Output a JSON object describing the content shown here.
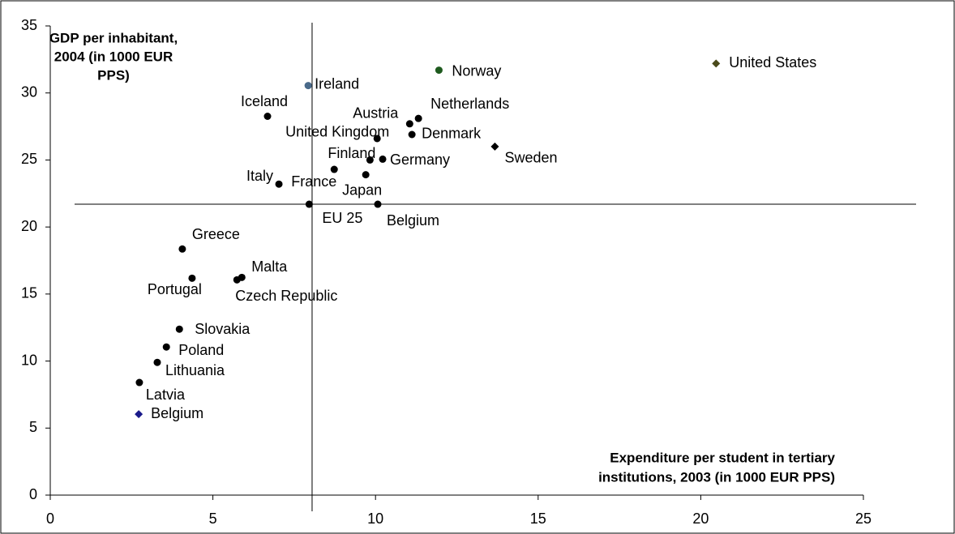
{
  "chart_data": {
    "type": "scatter",
    "y_label": [
      "GDP per inhabitant,",
      "2004 (in 1000 EUR",
      "PPS)"
    ],
    "x_label": [
      "Expenditure per student in tertiary",
      "institutions, 2003 (in 1000 EUR PPS)"
    ],
    "xlim": [
      0,
      25
    ],
    "xticks": [
      0,
      5,
      10,
      15,
      20,
      25
    ],
    "ylim": [
      0,
      35
    ],
    "yticks": [
      0,
      5,
      10,
      15,
      20,
      25,
      30,
      35
    ],
    "reference_lines": {
      "x": 8.05,
      "y": 21.7
    },
    "points": [
      {
        "name": "United States",
        "x": 20.47,
        "y": 32.2,
        "marker": "diamond",
        "color": "#4a4a1a"
      },
      {
        "name": "Norway",
        "x": 11.95,
        "y": 31.7,
        "marker": "circle",
        "color": "#1e5a1e"
      },
      {
        "name": "Ireland",
        "x": 7.93,
        "y": 30.55,
        "marker": "circle",
        "color": "#4a6a8a"
      },
      {
        "name": "Iceland",
        "x": 6.68,
        "y": 28.26,
        "marker": "circle",
        "color": "#000000"
      },
      {
        "name": "Austria",
        "x": 11.05,
        "y": 27.7,
        "marker": "circle",
        "color": "#000000"
      },
      {
        "name": "Netherlands",
        "x": 11.32,
        "y": 28.1,
        "marker": "circle",
        "color": "#000000"
      },
      {
        "name": "Denmark",
        "x": 11.12,
        "y": 26.9,
        "marker": "circle",
        "color": "#000000"
      },
      {
        "name": "United Kingdom",
        "x": 10.05,
        "y": 26.6,
        "marker": "circle",
        "color": "#000000"
      },
      {
        "name": "Sweden",
        "x": 13.67,
        "y": 26.0,
        "marker": "diamond",
        "color": "#000000"
      },
      {
        "name": "Finland",
        "x": 9.83,
        "y": 25.0,
        "marker": "circle",
        "color": "#000000"
      },
      {
        "name": "Germany",
        "x": 10.22,
        "y": 25.06,
        "marker": "circle",
        "color": "#000000"
      },
      {
        "name": "France",
        "x": 8.73,
        "y": 24.3,
        "marker": "circle",
        "color": "#000000"
      },
      {
        "name": "Japan",
        "x": 9.7,
        "y": 23.9,
        "marker": "circle",
        "color": "#000000"
      },
      {
        "name": "Italy",
        "x": 7.03,
        "y": 23.2,
        "marker": "circle",
        "color": "#000000"
      },
      {
        "name": "EU 25",
        "x": 7.96,
        "y": 21.7,
        "marker": "circle",
        "color": "#000000"
      },
      {
        "name": "Belgium",
        "x": 10.07,
        "y": 21.7,
        "marker": "circle",
        "color": "#000000"
      },
      {
        "name": "Greece",
        "x": 4.06,
        "y": 18.36,
        "marker": "circle",
        "color": "#000000"
      },
      {
        "name": "Malta",
        "x": 5.89,
        "y": 16.24,
        "marker": "circle",
        "color": "#000000"
      },
      {
        "name": "Czech Republic",
        "x": 5.74,
        "y": 16.06,
        "marker": "circle",
        "color": "#000000"
      },
      {
        "name": "Portugal",
        "x": 4.36,
        "y": 16.18,
        "marker": "circle",
        "color": "#000000"
      },
      {
        "name": "Slovakia",
        "x": 3.97,
        "y": 12.38,
        "marker": "circle",
        "color": "#000000"
      },
      {
        "name": "Poland",
        "x": 3.57,
        "y": 11.05,
        "marker": "circle",
        "color": "#000000"
      },
      {
        "name": "Lithuania",
        "x": 3.29,
        "y": 9.9,
        "marker": "circle",
        "color": "#000000"
      },
      {
        "name": "Latvia",
        "x": 2.74,
        "y": 8.4,
        "marker": "circle",
        "color": "#000000"
      },
      {
        "name": "Belgium",
        "x": 2.72,
        "y": 6.04,
        "marker": "diamond",
        "color": "#1a1a8a"
      }
    ]
  }
}
